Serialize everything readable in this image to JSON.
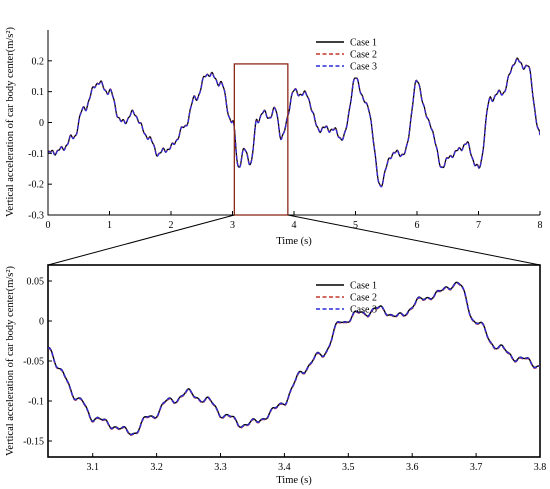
{
  "chart_data": [
    {
      "type": "line",
      "title": "",
      "xlabel": "Time (s)",
      "ylabel": "Vertical acceleration of car body center(m/s²)",
      "xlim": [
        0,
        8
      ],
      "ylim": [
        -0.3,
        0.3
      ],
      "xticks": [
        0,
        1,
        2,
        3,
        4,
        5,
        6,
        7,
        8
      ],
      "yticks": [
        -0.3,
        -0.2,
        -0.1,
        0,
        0.1,
        0.2
      ],
      "ytick_labels": [
        "-0.3",
        "-0.2",
        "-0.1",
        "0",
        "0.1",
        "0.2"
      ],
      "legend_position": "top-center",
      "x": [
        0,
        0.2,
        0.4,
        0.6,
        0.8,
        1.0,
        1.2,
        1.4,
        1.6,
        1.8,
        2.0,
        2.2,
        2.4,
        2.6,
        2.8,
        3.0,
        3.1,
        3.2,
        3.3,
        3.4,
        3.5,
        3.6,
        3.7,
        3.8,
        4.0,
        4.2,
        4.4,
        4.6,
        4.8,
        5.0,
        5.2,
        5.4,
        5.6,
        5.8,
        6.0,
        6.2,
        6.4,
        6.6,
        6.8,
        7.0,
        7.2,
        7.4,
        7.6,
        7.8,
        8.0
      ],
      "series": [
        {
          "name": "Case 1",
          "color": "#000000",
          "dash": "solid",
          "values": [
            -0.1,
            -0.09,
            -0.05,
            0.05,
            0.13,
            0.1,
            0.0,
            0.03,
            -0.04,
            -0.1,
            -0.08,
            -0.02,
            0.08,
            0.16,
            0.13,
            0.0,
            -0.14,
            -0.09,
            -0.13,
            0.01,
            0.03,
            0.02,
            0.04,
            -0.05,
            0.1,
            0.09,
            -0.02,
            -0.02,
            -0.05,
            0.14,
            0.05,
            -0.2,
            -0.1,
            -0.1,
            0.13,
            0.0,
            -0.14,
            -0.1,
            -0.07,
            -0.15,
            0.08,
            0.1,
            0.2,
            0.18,
            -0.04
          ]
        },
        {
          "name": "Case 2",
          "color": "#c0392b",
          "dash": "dashed",
          "values": [
            -0.1,
            -0.09,
            -0.05,
            0.05,
            0.13,
            0.1,
            0.0,
            0.03,
            -0.04,
            -0.1,
            -0.08,
            -0.02,
            0.08,
            0.16,
            0.13,
            0.0,
            -0.14,
            -0.09,
            -0.13,
            0.01,
            0.03,
            0.02,
            0.04,
            -0.05,
            0.1,
            0.09,
            -0.02,
            -0.02,
            -0.05,
            0.14,
            0.05,
            -0.2,
            -0.1,
            -0.1,
            0.13,
            0.0,
            -0.14,
            -0.1,
            -0.07,
            -0.15,
            0.08,
            0.1,
            0.2,
            0.18,
            -0.04
          ]
        },
        {
          "name": "Case 3",
          "color": "#2a2ad8",
          "dash": "dashed",
          "values": [
            -0.1,
            -0.09,
            -0.05,
            0.05,
            0.13,
            0.1,
            0.0,
            0.03,
            -0.04,
            -0.1,
            -0.08,
            -0.02,
            0.08,
            0.16,
            0.13,
            0.0,
            -0.14,
            -0.09,
            -0.13,
            0.01,
            0.03,
            0.02,
            0.04,
            -0.05,
            0.1,
            0.09,
            -0.02,
            -0.02,
            -0.05,
            0.14,
            0.05,
            -0.2,
            -0.1,
            -0.1,
            0.13,
            0.0,
            -0.14,
            -0.1,
            -0.07,
            -0.15,
            0.08,
            0.1,
            0.2,
            0.18,
            -0.04
          ]
        }
      ],
      "zoom_box": {
        "x_range": [
          3.03,
          3.9
        ],
        "y_range": [
          -0.3,
          0.19
        ]
      }
    },
    {
      "type": "line",
      "title": "",
      "xlabel": "Time (s)",
      "ylabel": "Vertical acceleration of car body center(m/s²)",
      "xlim": [
        3.03,
        3.8
      ],
      "ylim": [
        -0.17,
        0.07
      ],
      "xticks": [
        3.1,
        3.2,
        3.3,
        3.4,
        3.5,
        3.6,
        3.7,
        3.8
      ],
      "xtick_labels": [
        "3.1",
        "3.2",
        "3.3",
        "3.4",
        "3.5",
        "3.6",
        "3.7",
        "3.8"
      ],
      "yticks": [
        -0.15,
        -0.1,
        -0.05,
        0,
        0.05
      ],
      "ytick_labels": [
        "-0.15",
        "-0.1",
        "-0.05",
        "0",
        "0.05"
      ],
      "legend_position": "top-center",
      "x": [
        3.03,
        3.05,
        3.08,
        3.1,
        3.13,
        3.16,
        3.19,
        3.22,
        3.25,
        3.28,
        3.31,
        3.34,
        3.37,
        3.4,
        3.43,
        3.46,
        3.49,
        3.52,
        3.55,
        3.58,
        3.61,
        3.64,
        3.67,
        3.7,
        3.73,
        3.76,
        3.8
      ],
      "series": [
        {
          "name": "Case 1",
          "color": "#000000",
          "dash": "solid",
          "values": [
            -0.03,
            -0.065,
            -0.1,
            -0.12,
            -0.13,
            -0.14,
            -0.12,
            -0.1,
            -0.09,
            -0.1,
            -0.12,
            -0.13,
            -0.12,
            -0.1,
            -0.06,
            -0.04,
            0.0,
            0.01,
            0.015,
            0.005,
            0.025,
            0.035,
            0.048,
            0.0,
            -0.03,
            -0.045,
            -0.055
          ]
        },
        {
          "name": "Case 2",
          "color": "#c0392b",
          "dash": "dashed",
          "values": [
            -0.03,
            -0.065,
            -0.1,
            -0.12,
            -0.13,
            -0.14,
            -0.12,
            -0.1,
            -0.09,
            -0.1,
            -0.12,
            -0.13,
            -0.12,
            -0.1,
            -0.06,
            -0.04,
            0.0,
            0.01,
            0.015,
            0.005,
            0.025,
            0.035,
            0.048,
            0.0,
            -0.03,
            -0.045,
            -0.055
          ]
        },
        {
          "name": "Case 3",
          "color": "#2a2ad8",
          "dash": "dashed",
          "values": [
            -0.03,
            -0.065,
            -0.1,
            -0.12,
            -0.13,
            -0.14,
            -0.12,
            -0.1,
            -0.09,
            -0.1,
            -0.12,
            -0.13,
            -0.12,
            -0.1,
            -0.06,
            -0.04,
            0.0,
            0.01,
            0.015,
            0.005,
            0.025,
            0.035,
            0.048,
            0.0,
            -0.03,
            -0.045,
            -0.055
          ]
        }
      ]
    }
  ],
  "colors": {
    "zoom_box": "#8b2a1a",
    "axis": "#000000"
  }
}
